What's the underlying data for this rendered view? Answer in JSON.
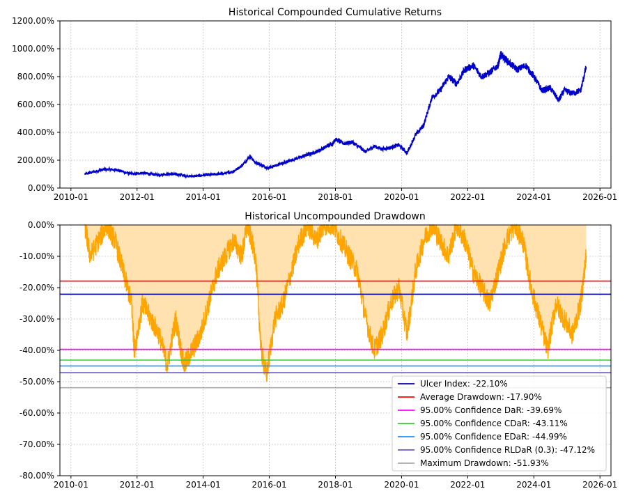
{
  "chart_data": [
    {
      "type": "line",
      "title": "Historical Compounded Cumulative Returns",
      "xlim": [
        "2009-09-01",
        "2026-05-01"
      ],
      "ylim": [
        0,
        12
      ],
      "x_ticks": [
        "2010-01",
        "2012-01",
        "2014-01",
        "2016-01",
        "2018-01",
        "2020-01",
        "2022-01",
        "2024-01",
        "2026-01"
      ],
      "y_ticks": [
        0,
        2,
        4,
        6,
        8,
        10,
        12
      ],
      "y_tick_labels": [
        "0.00%",
        "200.00%",
        "400.00%",
        "600.00%",
        "800.00%",
        "1000.00%",
        "1200.00%"
      ],
      "grid": true,
      "series": [
        {
          "color": "#0000cc",
          "x": [
            "2010-06",
            "2010-09",
            "2010-12",
            "2011-03",
            "2011-06",
            "2011-09",
            "2011-12",
            "2012-03",
            "2012-06",
            "2012-09",
            "2012-12",
            "2013-03",
            "2013-06",
            "2013-09",
            "2013-12",
            "2014-03",
            "2014-06",
            "2014-09",
            "2014-12",
            "2015-03",
            "2015-06",
            "2015-08",
            "2015-10",
            "2015-12",
            "2016-03",
            "2016-06",
            "2016-09",
            "2016-12",
            "2017-03",
            "2017-06",
            "2017-09",
            "2017-12",
            "2018-01",
            "2018-04",
            "2018-07",
            "2018-10",
            "2018-12",
            "2019-03",
            "2019-06",
            "2019-09",
            "2019-12",
            "2020-03",
            "2020-06",
            "2020-09",
            "2020-12",
            "2021-03",
            "2021-06",
            "2021-09",
            "2021-12",
            "2022-03",
            "2022-06",
            "2022-09",
            "2022-12",
            "2023-01",
            "2023-04",
            "2023-07",
            "2023-10",
            "2024-01",
            "2024-04",
            "2024-07",
            "2024-10",
            "2024-12",
            "2025-03",
            "2025-06",
            "2025-08"
          ],
          "y": [
            1.0,
            1.15,
            1.3,
            1.35,
            1.3,
            1.1,
            1.0,
            1.1,
            1.0,
            0.95,
            1.0,
            1.0,
            0.9,
            0.85,
            0.9,
            0.95,
            1.0,
            1.05,
            1.2,
            1.6,
            2.3,
            1.8,
            1.7,
            1.4,
            1.6,
            1.8,
            2.0,
            2.2,
            2.4,
            2.6,
            2.9,
            3.2,
            3.5,
            3.2,
            3.3,
            2.9,
            2.6,
            3.0,
            2.8,
            2.9,
            3.1,
            2.5,
            3.8,
            4.5,
            6.5,
            7.0,
            8.0,
            7.5,
            8.5,
            8.8,
            8.0,
            8.3,
            8.8,
            9.6,
            9.0,
            8.5,
            8.8,
            8.0,
            7.0,
            7.2,
            6.3,
            7.0,
            6.8,
            7.0,
            8.7
          ]
        }
      ]
    },
    {
      "type": "area",
      "title": "Historical Uncompounded Drawdown",
      "xlim": [
        "2009-09-01",
        "2026-05-01"
      ],
      "ylim": [
        -80,
        0
      ],
      "x_ticks": [
        "2010-01",
        "2012-01",
        "2014-01",
        "2016-01",
        "2018-01",
        "2020-01",
        "2022-01",
        "2024-01",
        "2026-01"
      ],
      "y_ticks": [
        0,
        -10,
        -20,
        -30,
        -40,
        -50,
        -60,
        -70,
        -80
      ],
      "y_tick_labels": [
        "0.00%",
        "-10.00%",
        "-20.00%",
        "-30.00%",
        "-40.00%",
        "-50.00%",
        "-60.00%",
        "-70.00%",
        "-80.00%"
      ],
      "grid": true,
      "legend_position": "lower-right",
      "line_color": "#ffa500",
      "fill_color": "#ffe2b0",
      "series": [
        {
          "x": [
            "2010-06",
            "2010-08",
            "2010-11",
            "2011-02",
            "2011-05",
            "2011-08",
            "2011-11",
            "2011-12",
            "2012-03",
            "2012-06",
            "2012-09",
            "2012-12",
            "2013-03",
            "2013-06",
            "2013-09",
            "2013-12",
            "2014-03",
            "2014-06",
            "2014-09",
            "2014-12",
            "2015-03",
            "2015-05",
            "2015-08",
            "2015-10",
            "2015-12",
            "2016-03",
            "2016-06",
            "2016-09",
            "2016-12",
            "2017-03",
            "2017-06",
            "2017-09",
            "2017-12",
            "2018-03",
            "2018-06",
            "2018-09",
            "2018-12",
            "2019-03",
            "2019-06",
            "2019-09",
            "2019-12",
            "2020-03",
            "2020-06",
            "2020-09",
            "2020-12",
            "2021-03",
            "2021-06",
            "2021-09",
            "2021-12",
            "2022-03",
            "2022-06",
            "2022-09",
            "2022-12",
            "2023-03",
            "2023-06",
            "2023-09",
            "2023-12",
            "2024-03",
            "2024-06",
            "2024-09",
            "2024-12",
            "2025-03",
            "2025-06",
            "2025-08"
          ],
          "y": [
            0,
            -10,
            -5,
            0,
            -5,
            -15,
            -25,
            -40,
            -25,
            -30,
            -35,
            -45,
            -30,
            -45,
            -40,
            -35,
            -25,
            -15,
            -10,
            -5,
            -10,
            0,
            -10,
            -40,
            -48,
            -30,
            -25,
            -15,
            -5,
            0,
            -5,
            0,
            0,
            -5,
            -10,
            -15,
            -30,
            -40,
            -35,
            -25,
            -20,
            -35,
            -15,
            -5,
            0,
            -5,
            -10,
            0,
            -5,
            -15,
            -20,
            -25,
            -15,
            -5,
            0,
            -5,
            -20,
            -30,
            -40,
            -25,
            -30,
            -35,
            -25,
            -10
          ]
        }
      ],
      "reference_lines": [
        {
          "label": "Ulcer Index: -22.10%",
          "value": -22.1,
          "color": "#0000aa"
        },
        {
          "label": "Average Drawdown: -17.90%",
          "value": -17.9,
          "color": "#ff0000"
        },
        {
          "label": "95.00% Confidence DaR: -39.69%",
          "value": -39.69,
          "color": "#ff00ff"
        },
        {
          "label": "95.00% Confidence CDaR: -43.11%",
          "value": -43.11,
          "color": "#32cd32"
        },
        {
          "label": "95.00% Confidence EDaR: -44.99%",
          "value": -44.99,
          "color": "#1e90ff"
        },
        {
          "label": "95.00% Confidence RLDaR (0.3): -47.12%",
          "value": -47.12,
          "color": "#6a5acd"
        },
        {
          "label": "Maximum Drawdown: -51.93%",
          "value": -51.93,
          "color": "#a9a9a9"
        }
      ]
    }
  ]
}
